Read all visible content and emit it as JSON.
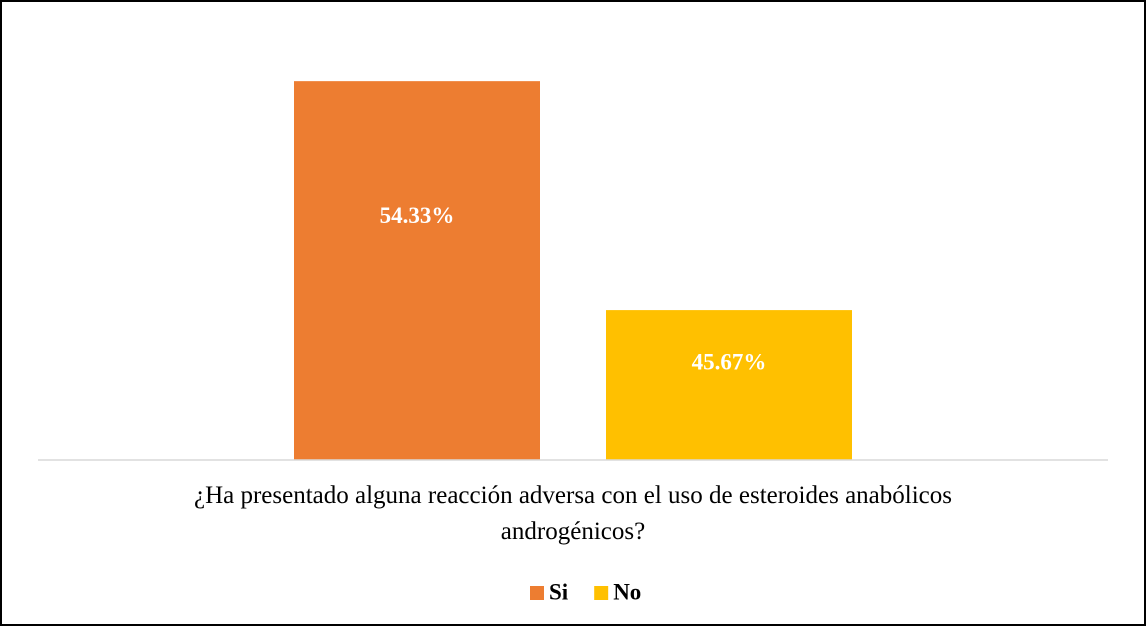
{
  "chart_data": {
    "type": "bar",
    "categories": [
      "¿Ha presentado alguna reacción adversa con el uso de esteroides anabólicos androgénicos?"
    ],
    "series": [
      {
        "name": "Si",
        "color": "#ed7d31",
        "values": [
          54.33
        ],
        "value_labels": [
          "54.33%"
        ]
      },
      {
        "name": "No",
        "color": "#ffc000",
        "values": [
          45.67
        ],
        "value_labels": [
          "45.67%"
        ]
      }
    ],
    "ylim": [
      40,
      56
    ]
  }
}
